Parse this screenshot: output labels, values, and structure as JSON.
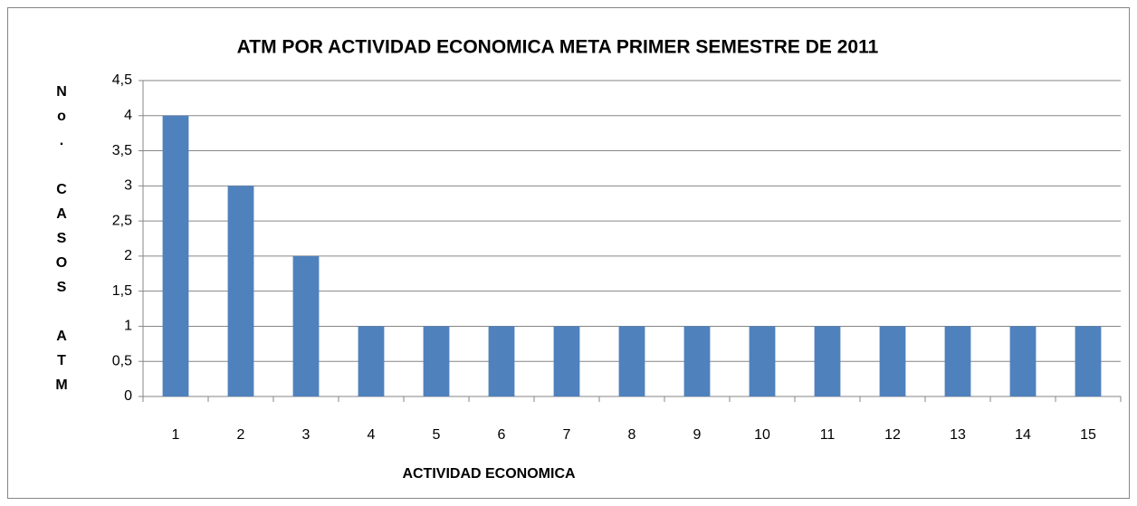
{
  "chart_data": {
    "type": "bar",
    "title": "ATM POR ACTIVIDAD ECONOMICA META PRIMER SEMESTRE DE 2011",
    "x_label": "ACTIVIDAD ECONOMICA",
    "y_label": "No. CASOS ATM",
    "categories": [
      "1",
      "2",
      "3",
      "4",
      "5",
      "6",
      "7",
      "8",
      "9",
      "10",
      "11",
      "12",
      "13",
      "14",
      "15"
    ],
    "values": [
      4,
      3,
      2,
      1,
      1,
      1,
      1,
      1,
      1,
      1,
      1,
      1,
      1,
      1,
      1
    ],
    "color": "#4f81bd",
    "ylim": [
      0,
      4.5
    ],
    "yticks": [
      0,
      {
        "value": 0.5,
        "label": "0,5"
      },
      1,
      {
        "value": 1.5,
        "label": "1,5"
      },
      2,
      {
        "value": 2.5,
        "label": "2,5"
      },
      3,
      {
        "value": 3.5,
        "label": "3,5"
      },
      4,
      {
        "value": 4.5,
        "label": "4,5"
      }
    ],
    "grid": true
  }
}
